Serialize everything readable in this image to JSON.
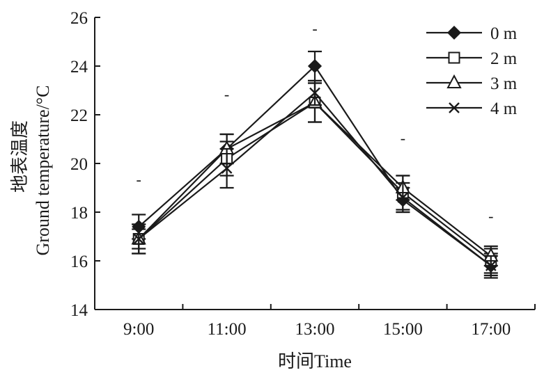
{
  "chart_data": {
    "type": "line",
    "x": [
      "9:00",
      "11:00",
      "13:00",
      "15:00",
      "17:00"
    ],
    "xlabel": "时间Time",
    "ylabel_cn": "地表温度",
    "ylabel_en": "Ground temperature/°C",
    "ylim": [
      14,
      26
    ],
    "yticks": [
      14,
      16,
      18,
      20,
      22,
      24,
      26
    ],
    "grid": false,
    "legend_position": "top-right",
    "series": [
      {
        "name": "0 m",
        "marker": "filled-diamond",
        "values": [
          17.4,
          20.6,
          24.0,
          18.5,
          15.8
        ],
        "err": [
          0.5,
          0.6,
          0.6,
          0.5,
          0.5
        ]
      },
      {
        "name": "2 m",
        "marker": "open-square",
        "values": [
          16.9,
          20.2,
          22.5,
          18.8,
          16.0
        ],
        "err": [
          0.6,
          0.7,
          0.8,
          0.7,
          0.5
        ]
      },
      {
        "name": "3 m",
        "marker": "open-triangle",
        "values": [
          16.9,
          20.6,
          22.5,
          19.0,
          16.2
        ],
        "err": [
          0.4,
          0.6,
          0.8,
          0.5,
          0.4
        ]
      },
      {
        "name": "4 m",
        "marker": "x-cross",
        "values": [
          16.9,
          19.8,
          22.9,
          18.6,
          15.8
        ],
        "err": [
          0.6,
          0.8,
          0.5,
          0.6,
          0.4
        ]
      }
    ],
    "annotations": [
      {
        "x": "9:00",
        "text": "-",
        "y": 19.3
      },
      {
        "x": "11:00",
        "text": "-",
        "y": 22.8
      },
      {
        "x": "13:00",
        "text": "-",
        "y": 25.5
      },
      {
        "x": "15:00",
        "text": "-",
        "y": 21.0
      },
      {
        "x": "17:00",
        "text": "-",
        "y": 17.8
      }
    ],
    "colors": {
      "line": "#1a1a1a",
      "marker_fill": "#1a1a1a",
      "open_fill": "#ffffff"
    }
  }
}
